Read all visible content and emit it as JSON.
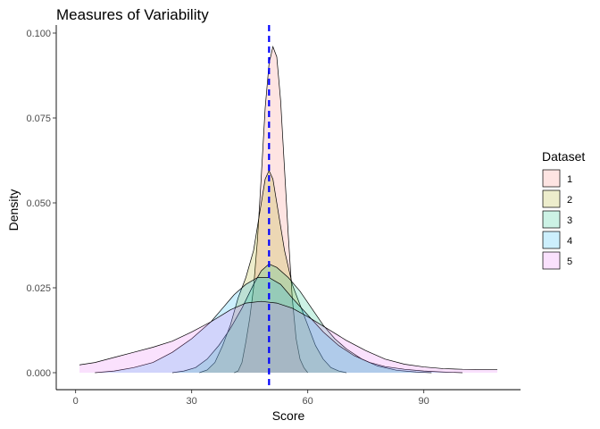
{
  "chart_data": {
    "type": "area",
    "title": "Measures of Variability",
    "xlabel": "Score",
    "ylabel": "Density",
    "xlim": [
      -5,
      115
    ],
    "ylim": [
      0,
      0.1
    ],
    "x_ticks": [
      0,
      30,
      60,
      90
    ],
    "x_tick_labels": [
      "0",
      "30",
      "60",
      "90"
    ],
    "y_ticks": [
      0,
      0.025,
      0.05,
      0.075,
      0.1
    ],
    "y_tick_labels": [
      "0.000",
      "0.025",
      "0.050",
      "0.075",
      "0.100"
    ],
    "grid": false,
    "legend_position": "right",
    "legend_title": "Dataset",
    "fill_opacity": 0.2,
    "mean_line": {
      "x": 50,
      "color": "#0000ff",
      "style": "dashed"
    },
    "series": [
      {
        "name": "1",
        "color": "#F8766D",
        "points": [
          [
            41,
            0
          ],
          [
            42,
            0.0005
          ],
          [
            43,
            0.003
          ],
          [
            44,
            0.009
          ],
          [
            45,
            0.016
          ],
          [
            46,
            0.025
          ],
          [
            47,
            0.039
          ],
          [
            48,
            0.058
          ],
          [
            49,
            0.078
          ],
          [
            50,
            0.091
          ],
          [
            51,
            0.096
          ],
          [
            52,
            0.093
          ],
          [
            53,
            0.08
          ],
          [
            54,
            0.06
          ],
          [
            55,
            0.04
          ],
          [
            56,
            0.022
          ],
          [
            57,
            0.01
          ],
          [
            58,
            0.004
          ],
          [
            59,
            0.0015
          ],
          [
            60,
            0
          ]
        ]
      },
      {
        "name": "2",
        "color": "#A3A500",
        "points": [
          [
            32,
            0
          ],
          [
            34,
            0.0008
          ],
          [
            36,
            0.003
          ],
          [
            38,
            0.008
          ],
          [
            40,
            0.014
          ],
          [
            42,
            0.022
          ],
          [
            44,
            0.028
          ],
          [
            46,
            0.036
          ],
          [
            48,
            0.05
          ],
          [
            49,
            0.057
          ],
          [
            50,
            0.0595
          ],
          [
            51,
            0.057
          ],
          [
            52,
            0.05
          ],
          [
            54,
            0.036
          ],
          [
            56,
            0.026
          ],
          [
            58,
            0.02
          ],
          [
            60,
            0.014
          ],
          [
            62,
            0.008
          ],
          [
            64,
            0.004
          ],
          [
            66,
            0.0015
          ],
          [
            68,
            0.0005
          ],
          [
            70,
            0
          ]
        ]
      },
      {
        "name": "3",
        "color": "#00BF7D",
        "points": [
          [
            25,
            0
          ],
          [
            28,
            0.0005
          ],
          [
            31,
            0.0015
          ],
          [
            34,
            0.004
          ],
          [
            37,
            0.008
          ],
          [
            40,
            0.013
          ],
          [
            43,
            0.019
          ],
          [
            46,
            0.026
          ],
          [
            48,
            0.03
          ],
          [
            50,
            0.032
          ],
          [
            52,
            0.031
          ],
          [
            55,
            0.028
          ],
          [
            58,
            0.024
          ],
          [
            61,
            0.019
          ],
          [
            64,
            0.014
          ],
          [
            67,
            0.01
          ],
          [
            70,
            0.007
          ],
          [
            74,
            0.004
          ],
          [
            78,
            0.002
          ],
          [
            83,
            0.0007
          ],
          [
            88,
            0.0002
          ],
          [
            92,
            0
          ]
        ]
      },
      {
        "name": "4",
        "color": "#00B0F6",
        "points": [
          [
            5,
            0
          ],
          [
            10,
            0.0005
          ],
          [
            15,
            0.0015
          ],
          [
            20,
            0.003
          ],
          [
            25,
            0.006
          ],
          [
            30,
            0.01
          ],
          [
            35,
            0.015
          ],
          [
            38,
            0.019
          ],
          [
            41,
            0.023
          ],
          [
            44,
            0.026
          ],
          [
            47,
            0.028
          ],
          [
            50,
            0.028
          ],
          [
            53,
            0.026
          ],
          [
            56,
            0.022
          ],
          [
            60,
            0.017
          ],
          [
            64,
            0.012
          ],
          [
            68,
            0.008
          ],
          [
            72,
            0.005
          ],
          [
            76,
            0.003
          ],
          [
            80,
            0.0018
          ],
          [
            85,
            0.001
          ],
          [
            90,
            0.0005
          ],
          [
            95,
            0.0002
          ],
          [
            100,
            0
          ]
        ]
      },
      {
        "name": "5",
        "color": "#E76BF3",
        "points": [
          [
            1,
            0.0023
          ],
          [
            5,
            0.003
          ],
          [
            10,
            0.0045
          ],
          [
            15,
            0.006
          ],
          [
            20,
            0.0075
          ],
          [
            25,
            0.0093
          ],
          [
            30,
            0.012
          ],
          [
            35,
            0.015
          ],
          [
            40,
            0.0185
          ],
          [
            44,
            0.0205
          ],
          [
            48,
            0.021
          ],
          [
            52,
            0.0205
          ],
          [
            56,
            0.019
          ],
          [
            60,
            0.0165
          ],
          [
            65,
            0.013
          ],
          [
            70,
            0.0095
          ],
          [
            75,
            0.0065
          ],
          [
            80,
            0.004
          ],
          [
            85,
            0.0025
          ],
          [
            90,
            0.0017
          ],
          [
            95,
            0.0012
          ],
          [
            100,
            0.001
          ],
          [
            109,
            0.0009
          ]
        ]
      }
    ]
  }
}
